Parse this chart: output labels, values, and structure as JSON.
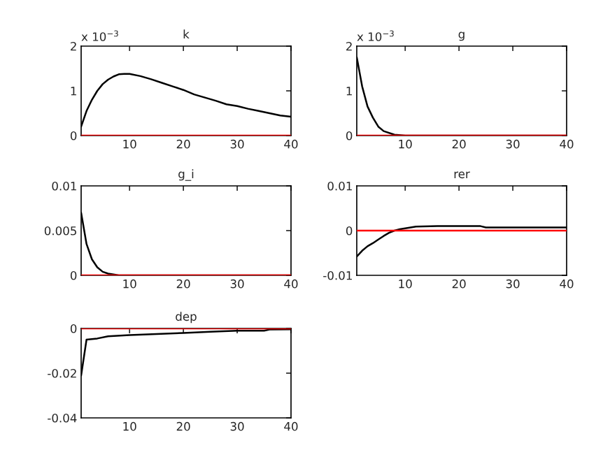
{
  "chart_data": [
    {
      "type": "line",
      "title": "k",
      "annotations": [
        "x 10$^{−3}$"
      ],
      "xlim": [
        1,
        40
      ],
      "xticks": [
        10,
        20,
        30,
        40
      ],
      "ylim": [
        0,
        2
      ],
      "yticks": [
        0,
        1,
        2
      ],
      "grid": false,
      "legend": false,
      "series": [
        {
          "color": "#000000",
          "x": [
            1,
            2,
            3,
            4,
            5,
            6,
            7,
            8,
            9,
            10,
            12,
            14,
            16,
            18,
            20,
            22,
            24,
            26,
            28,
            30,
            32,
            34,
            36,
            38,
            40
          ],
          "values": [
            0.2,
            0.55,
            0.8,
            1.0,
            1.15,
            1.25,
            1.32,
            1.37,
            1.38,
            1.38,
            1.33,
            1.26,
            1.18,
            1.1,
            1.02,
            0.92,
            0.85,
            0.78,
            0.7,
            0.66,
            0.6,
            0.55,
            0.5,
            0.45,
            0.42
          ]
        }
      ],
      "ref_lines": [
        {
          "axis": "y",
          "value": 0,
          "color": "#ff0000"
        }
      ]
    },
    {
      "type": "line",
      "title": "g",
      "annotations": [
        "x 10$^{−3}$"
      ],
      "xlim": [
        1,
        40
      ],
      "xticks": [
        10,
        20,
        30,
        40
      ],
      "ylim": [
        0,
        2
      ],
      "yticks": [
        0,
        1,
        2
      ],
      "grid": false,
      "legend": false,
      "series": [
        {
          "color": "#000000",
          "x": [
            1,
            2,
            3,
            4,
            5,
            6,
            8,
            10,
            40
          ],
          "values": [
            1.75,
            1.1,
            0.65,
            0.4,
            0.2,
            0.1,
            0.02,
            0,
            0
          ]
        }
      ],
      "ref_lines": [
        {
          "axis": "y",
          "value": 0,
          "color": "#ff0000"
        }
      ]
    },
    {
      "type": "line",
      "title": "g_i",
      "xlim": [
        1,
        40
      ],
      "xticks": [
        10,
        20,
        30,
        40
      ],
      "ylim": [
        0,
        0.01
      ],
      "yticks": [
        0,
        0.005,
        0.01
      ],
      "grid": false,
      "legend": false,
      "series": [
        {
          "color": "#000000",
          "x": [
            1,
            2,
            3,
            4,
            5,
            6,
            8,
            40
          ],
          "values": [
            0.007,
            0.0035,
            0.0018,
            0.0009,
            0.0004,
            0.0002,
            0,
            0
          ]
        }
      ],
      "ref_lines": [
        {
          "axis": "y",
          "value": 0,
          "color": "#ff0000"
        }
      ]
    },
    {
      "type": "line",
      "title": "rer",
      "xlim": [
        1,
        40
      ],
      "xticks": [
        10,
        20,
        30,
        40
      ],
      "ylim": [
        -0.01,
        0.01
      ],
      "yticks": [
        -0.01,
        0,
        0.01
      ],
      "grid": false,
      "legend": false,
      "series": [
        {
          "color": "#000000",
          "x": [
            1,
            2,
            3,
            4,
            5,
            6,
            7,
            8,
            9,
            10,
            12,
            16,
            20,
            24,
            25,
            30,
            40
          ],
          "values": [
            -0.0058,
            -0.0045,
            -0.0035,
            -0.0028,
            -0.002,
            -0.0012,
            -0.0005,
            0,
            0.0003,
            0.0005,
            0.0009,
            0.001,
            0.001,
            0.001,
            0.0007,
            0.0007,
            0.0007
          ]
        }
      ],
      "ref_lines": [
        {
          "axis": "y",
          "value": 0,
          "color": "#ff0000"
        }
      ]
    },
    {
      "type": "line",
      "title": "dep",
      "xlim": [
        1,
        40
      ],
      "xticks": [
        10,
        20,
        30,
        40
      ],
      "ylim": [
        -0.04,
        0
      ],
      "yticks": [
        -0.04,
        -0.02,
        0
      ],
      "grid": false,
      "legend": false,
      "series": [
        {
          "color": "#000000",
          "x": [
            1,
            2,
            4,
            6,
            10,
            15,
            20,
            25,
            30,
            35,
            36,
            40
          ],
          "values": [
            -0.021,
            -0.005,
            -0.0045,
            -0.0035,
            -0.003,
            -0.0025,
            -0.002,
            -0.0015,
            -0.001,
            -0.001,
            -0.0005,
            -0.0004
          ]
        }
      ],
      "ref_lines": [
        {
          "axis": "y",
          "value": 0,
          "color": "#ff0000"
        }
      ]
    }
  ]
}
